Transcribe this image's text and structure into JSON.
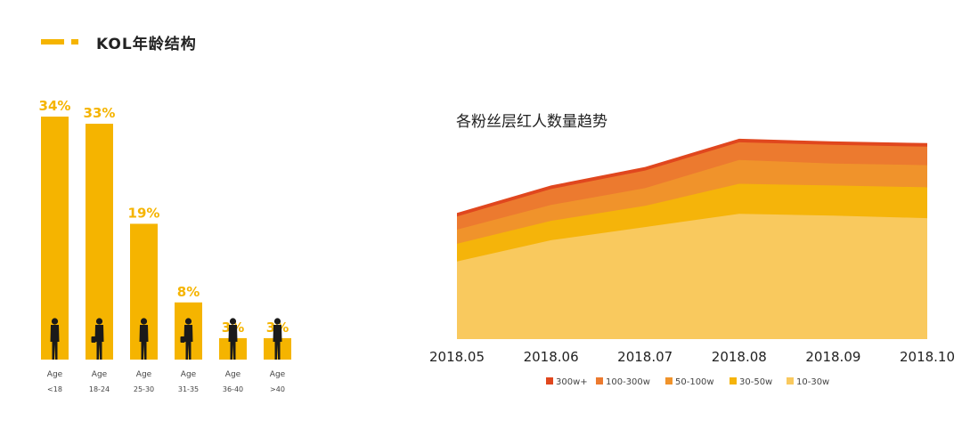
{
  "section_title": "KOL年龄结构",
  "colors": {
    "accent": "#F5B400",
    "silhouette": "#1a1a1a",
    "text_dark": "#222222",
    "label_gray": "#444444"
  },
  "chart_data": [
    {
      "type": "bar",
      "categories": [
        "Age <18",
        "Age 18-24",
        "Age 25-30",
        "Age 31-35",
        "Age 36-40",
        "Age >40"
      ],
      "category_lines": [
        [
          "Age",
          "<18"
        ],
        [
          "Age",
          "18-24"
        ],
        [
          "Age",
          "25-30"
        ],
        [
          "Age",
          "31-35"
        ],
        [
          "Age",
          "36-40"
        ],
        [
          "Age",
          ">40"
        ]
      ],
      "values": [
        34,
        33,
        19,
        8,
        3,
        3
      ],
      "data_labels": [
        "34%",
        "33%",
        "19%",
        "8%",
        "3%",
        "3%"
      ],
      "unit": "%",
      "title": "",
      "xlabel": "",
      "ylabel": "",
      "grid": false
    },
    {
      "type": "area",
      "title": "各粉丝层红人数量趋势",
      "x": [
        "2018.05",
        "2018.06",
        "2018.07",
        "2018.08",
        "2018.09",
        "2018.10"
      ],
      "stacked": true,
      "y_scale": "relative (no axis printed)",
      "series": [
        {
          "name": "10-30w",
          "color": "#F9C95E",
          "values": [
            88,
            112,
            127,
            142,
            140,
            137
          ]
        },
        {
          "name": "30-50w",
          "color": "#F5B40A",
          "values": [
            20,
            22,
            24,
            34,
            34,
            35
          ]
        },
        {
          "name": "50-100w",
          "color": "#F0932B",
          "values": [
            16,
            18,
            20,
            27,
            25,
            25
          ]
        },
        {
          "name": "100-300w",
          "color": "#EC7A2F",
          "values": [
            15,
            18,
            20,
            20,
            21,
            21
          ]
        },
        {
          "name": "300w+",
          "color": "#E0471E",
          "values": [
            4,
            4,
            4,
            4,
            4,
            4
          ]
        }
      ],
      "legend": {
        "position": "bottom",
        "order": [
          "300w+",
          "100-300w",
          "50-100w",
          "30-50w",
          "10-30w"
        ]
      },
      "grid": false
    }
  ]
}
